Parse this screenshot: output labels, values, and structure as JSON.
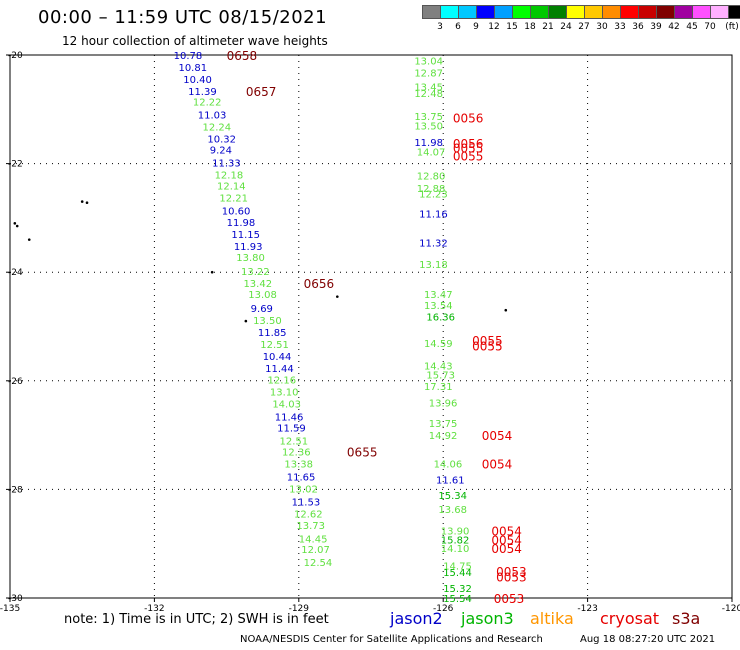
{
  "header": {
    "title": "00:00 – 11:59 UTC 08/15/2021",
    "subtitle": "12 hour collection of altimeter wave heights"
  },
  "color_scale": {
    "colors": [
      "#808080",
      "#00ffff",
      "#00c8ff",
      "#0000ff",
      "#00a0ff",
      "#00ff00",
      "#00c800",
      "#008000",
      "#ffff00",
      "#ffc800",
      "#ff8c00",
      "#ff0000",
      "#c80000",
      "#800000",
      "#a000a0",
      "#ff50ff",
      "#ffb0ff",
      "#000000"
    ],
    "labels": [
      "3",
      "6",
      "9",
      "12",
      "15",
      "18",
      "21",
      "24",
      "27",
      "30",
      "33",
      "36",
      "39",
      "42",
      "45",
      "70",
      "(ft)"
    ],
    "label_colors": [
      "#000000",
      "#000000",
      "#000000",
      "#000000",
      "#000000",
      "#000000",
      "#000000",
      "#000000",
      "#000000",
      "#000000",
      "#000000",
      "#000000",
      "#000000",
      "#000000",
      "#000000",
      "#000000",
      "#000000"
    ]
  },
  "axes": {
    "lon_ticks": [
      "-135",
      "-132",
      "-129",
      "-126",
      "-123",
      "-120"
    ],
    "lat_ticks": [
      "-20",
      "-22",
      "-24",
      "-26",
      "-28",
      "-30"
    ],
    "lon_range": [
      -135,
      -120
    ],
    "lat_range": [
      -20,
      -30
    ]
  },
  "colors": {
    "jason2": "#0000c8",
    "jason3": "#00b400",
    "altika": "#ff9600",
    "cryosat": "#e60000",
    "s3a": "#800000",
    "light_green": "#60e040"
  },
  "track_west": {
    "readings": [
      {
        "v": "10.78",
        "c": "jason2",
        "lon": -131.6,
        "lat": -20.0
      },
      {
        "v": "10.81",
        "c": "jason2",
        "lon": -131.5,
        "lat": -20.22
      },
      {
        "v": "10.40",
        "c": "jason2",
        "lon": -131.4,
        "lat": -20.44
      },
      {
        "v": "11.39",
        "c": "jason2",
        "lon": -131.3,
        "lat": -20.66
      },
      {
        "v": "12.22",
        "c": "light_green",
        "lon": -131.2,
        "lat": -20.86
      },
      {
        "v": "11.03",
        "c": "jason2",
        "lon": -131.1,
        "lat": -21.1
      },
      {
        "v": "12.24",
        "c": "light_green",
        "lon": -131.0,
        "lat": -21.32
      },
      {
        "v": "10.32",
        "c": "jason2",
        "lon": -130.9,
        "lat": -21.54
      },
      {
        "v": "9.24",
        "c": "jason2",
        "lon": -130.85,
        "lat": -21.74
      },
      {
        "v": "11.33",
        "c": "jason2",
        "lon": -130.8,
        "lat": -21.98
      },
      {
        "v": "12.18",
        "c": "light_green",
        "lon": -130.75,
        "lat": -22.2
      },
      {
        "v": "12.14",
        "c": "light_green",
        "lon": -130.7,
        "lat": -22.4
      },
      {
        "v": "12.21",
        "c": "light_green",
        "lon": -130.65,
        "lat": -22.62
      },
      {
        "v": "10.60",
        "c": "jason2",
        "lon": -130.6,
        "lat": -22.86
      },
      {
        "v": "11.98",
        "c": "jason2",
        "lon": -130.5,
        "lat": -23.08
      },
      {
        "v": "11.15",
        "c": "jason2",
        "lon": -130.4,
        "lat": -23.3
      },
      {
        "v": "11.93",
        "c": "jason2",
        "lon": -130.35,
        "lat": -23.52
      },
      {
        "v": "13.80",
        "c": "light_green",
        "lon": -130.3,
        "lat": -23.72
      },
      {
        "v": "13.22",
        "c": "light_green",
        "lon": -130.2,
        "lat": -23.98
      },
      {
        "v": "13.42",
        "c": "light_green",
        "lon": -130.15,
        "lat": -24.2
      },
      {
        "v": "13.08",
        "c": "light_green",
        "lon": -130.05,
        "lat": -24.4
      },
      {
        "v": "9.69",
        "c": "jason2",
        "lon": -130.0,
        "lat": -24.66
      },
      {
        "v": "13.50",
        "c": "light_green",
        "lon": -129.95,
        "lat": -24.88
      },
      {
        "v": "11.85",
        "c": "jason2",
        "lon": -129.85,
        "lat": -25.1
      },
      {
        "v": "12.51",
        "c": "light_green",
        "lon": -129.8,
        "lat": -25.32
      },
      {
        "v": "10.44",
        "c": "jason2",
        "lon": -129.75,
        "lat": -25.54
      },
      {
        "v": "11.44",
        "c": "jason2",
        "lon": -129.7,
        "lat": -25.76
      },
      {
        "v": "12.16",
        "c": "light_green",
        "lon": -129.65,
        "lat": -25.98
      },
      {
        "v": "13.10",
        "c": "light_green",
        "lon": -129.6,
        "lat": -26.2
      },
      {
        "v": "14.03",
        "c": "light_green",
        "lon": -129.55,
        "lat": -26.42
      },
      {
        "v": "11.46",
        "c": "jason2",
        "lon": -129.5,
        "lat": -26.66
      },
      {
        "v": "11.59",
        "c": "jason2",
        "lon": -129.45,
        "lat": -26.86
      },
      {
        "v": "12.51",
        "c": "light_green",
        "lon": -129.4,
        "lat": -27.1
      },
      {
        "v": "12.36",
        "c": "light_green",
        "lon": -129.35,
        "lat": -27.3
      },
      {
        "v": "13.38",
        "c": "light_green",
        "lon": -129.3,
        "lat": -27.52
      },
      {
        "v": "11.65",
        "c": "jason2",
        "lon": -129.25,
        "lat": -27.76
      },
      {
        "v": "13.02",
        "c": "light_green",
        "lon": -129.2,
        "lat": -27.98
      },
      {
        "v": "11.53",
        "c": "jason2",
        "lon": -129.15,
        "lat": -28.22
      },
      {
        "v": "12.62",
        "c": "light_green",
        "lon": -129.1,
        "lat": -28.44
      },
      {
        "v": "13.73",
        "c": "light_green",
        "lon": -129.05,
        "lat": -28.66
      },
      {
        "v": "14.45",
        "c": "light_green",
        "lon": -129.0,
        "lat": -28.9
      },
      {
        "v": "12.07",
        "c": "light_green",
        "lon": -128.95,
        "lat": -29.1
      },
      {
        "v": "12.54",
        "c": "light_green",
        "lon": -128.9,
        "lat": -29.34
      }
    ],
    "times": [
      {
        "t": "0658",
        "lon": -130.5,
        "lat": -20.0
      },
      {
        "t": "0657",
        "lon": -130.1,
        "lat": -20.66
      },
      {
        "t": "0656",
        "lon": -128.9,
        "lat": -24.2
      },
      {
        "t": "0655",
        "lon": -128.0,
        "lat": -27.3
      }
    ]
  },
  "track_east": {
    "readings": [
      {
        "v": "13.04",
        "c": "light_green",
        "lon": -126.6,
        "lat": -20.1
      },
      {
        "v": "12.87",
        "c": "light_green",
        "lon": -126.6,
        "lat": -20.32
      },
      {
        "v": "13.45",
        "c": "light_green",
        "lon": -126.6,
        "lat": -20.58
      },
      {
        "v": "12.48",
        "c": "light_green",
        "lon": -126.6,
        "lat": -20.7
      },
      {
        "v": "13.75",
        "c": "light_green",
        "lon": -126.6,
        "lat": -21.12
      },
      {
        "v": "13.50",
        "c": "light_green",
        "lon": -126.6,
        "lat": -21.3
      },
      {
        "v": "11.98",
        "c": "jason2",
        "lon": -126.6,
        "lat": -21.6
      },
      {
        "v": "14.07",
        "c": "light_green",
        "lon": -126.55,
        "lat": -21.78
      },
      {
        "v": "12.80",
        "c": "light_green",
        "lon": -126.55,
        "lat": -22.22
      },
      {
        "v": "12.88",
        "c": "light_green",
        "lon": -126.55,
        "lat": -22.45
      },
      {
        "v": "12.23",
        "c": "light_green",
        "lon": -126.5,
        "lat": -22.55
      },
      {
        "v": "11.16",
        "c": "jason2",
        "lon": -126.5,
        "lat": -22.92
      },
      {
        "v": "11.32",
        "c": "jason2",
        "lon": -126.5,
        "lat": -23.45
      },
      {
        "v": "13.18",
        "c": "light_green",
        "lon": -126.5,
        "lat": -23.85
      },
      {
        "v": "13.47",
        "c": "light_green",
        "lon": -126.4,
        "lat": -24.4
      },
      {
        "v": "13.54",
        "c": "light_green",
        "lon": -126.4,
        "lat": -24.6
      },
      {
        "v": "16.36",
        "c": "jason3",
        "lon": -126.35,
        "lat": -24.82
      },
      {
        "v": "14.59",
        "c": "light_green",
        "lon": -126.4,
        "lat": -25.3
      },
      {
        "v": "14.43",
        "c": "light_green",
        "lon": -126.4,
        "lat": -25.72
      },
      {
        "v": "15.73",
        "c": "light_green",
        "lon": -126.35,
        "lat": -25.88
      },
      {
        "v": "17.31",
        "c": "light_green",
        "lon": -126.4,
        "lat": -26.1
      },
      {
        "v": "13.96",
        "c": "light_green",
        "lon": -126.3,
        "lat": -26.4
      },
      {
        "v": "13.75",
        "c": "light_green",
        "lon": -126.3,
        "lat": -26.78
      },
      {
        "v": "14.92",
        "c": "light_green",
        "lon": -126.3,
        "lat": -27.0
      },
      {
        "v": "14.06",
        "c": "light_green",
        "lon": -126.2,
        "lat": -27.52
      },
      {
        "v": "11.61",
        "c": "jason2",
        "lon": -126.15,
        "lat": -27.82
      },
      {
        "v": "15.34",
        "c": "jason3",
        "lon": -126.1,
        "lat": -28.1
      },
      {
        "v": "13.68",
        "c": "light_green",
        "lon": -126.1,
        "lat": -28.36
      },
      {
        "v": "13.90",
        "c": "light_green",
        "lon": -126.05,
        "lat": -28.76
      },
      {
        "v": "15.82",
        "c": "jason3",
        "lon": -126.05,
        "lat": -28.92
      },
      {
        "v": "14.10",
        "c": "light_green",
        "lon": -126.05,
        "lat": -29.08
      },
      {
        "v": "14.75",
        "c": "light_green",
        "lon": -126.0,
        "lat": -29.4
      },
      {
        "v": "15.44",
        "c": "jason3",
        "lon": -126.0,
        "lat": -29.52
      },
      {
        "v": "15.32",
        "c": "jason3",
        "lon": -126.0,
        "lat": -29.82
      },
      {
        "v": "15.54",
        "c": "jason3",
        "lon": -126.0,
        "lat": -30.0
      }
    ],
    "times": [
      {
        "t": "0056",
        "lon": -125.8,
        "lat": -21.15
      },
      {
        "t": "0056",
        "lon": -125.8,
        "lat": -21.62
      },
      {
        "t": "0055",
        "lon": -125.8,
        "lat": -21.7
      },
      {
        "t": "0055",
        "lon": -125.8,
        "lat": -21.85
      },
      {
        "t": "0055",
        "lon": -125.4,
        "lat": -25.25
      },
      {
        "t": "0055",
        "lon": -125.4,
        "lat": -25.35
      },
      {
        "t": "0054",
        "lon": -125.2,
        "lat": -27.0
      },
      {
        "t": "0054",
        "lon": -125.2,
        "lat": -27.52
      },
      {
        "t": "0054",
        "lon": -125.0,
        "lat": -28.76
      },
      {
        "t": "0054",
        "lon": -125.0,
        "lat": -28.92
      },
      {
        "t": "0054",
        "lon": -125.0,
        "lat": -29.08
      },
      {
        "t": "0053",
        "lon": -124.9,
        "lat": -29.5
      },
      {
        "t": "0053",
        "lon": -124.9,
        "lat": -29.6
      },
      {
        "t": "0053",
        "lon": -124.95,
        "lat": -30.0
      }
    ]
  },
  "islands": [
    {
      "lon": -133.5,
      "lat": -22.7
    },
    {
      "lon": -133.4,
      "lat": -22.72
    },
    {
      "lon": -134.9,
      "lat": -23.1
    },
    {
      "lon": -134.85,
      "lat": -23.15
    },
    {
      "lon": -134.6,
      "lat": -23.4
    },
    {
      "lon": -130.8,
      "lat": -24.0
    },
    {
      "lon": -128.2,
      "lat": -24.45
    },
    {
      "lon": -124.7,
      "lat": -24.7
    },
    {
      "lon": -130.1,
      "lat": -24.9
    }
  ],
  "footer": {
    "note": "note:  1) Time is in UTC;  2) SWH is in feet",
    "sat_jason2": "jason2",
    "sat_jason3": "jason3",
    "sat_altika": "altika",
    "sat_cryosat": "cryosat",
    "sat_s3a": "s3a",
    "credit": "NOAA/NESDIS Center for Satellite Applications and Research",
    "timestamp": "Aug 18 08:27:20 UTC 2021"
  }
}
